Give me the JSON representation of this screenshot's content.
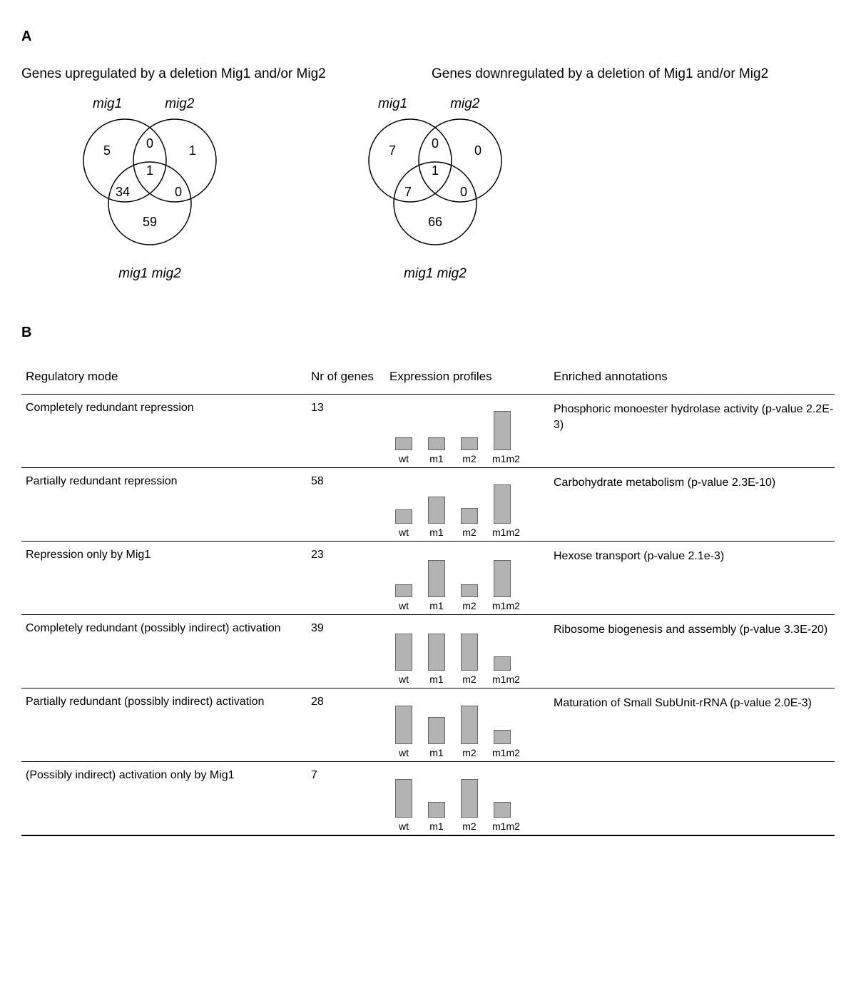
{
  "panelA": {
    "letter": "A",
    "left_title": "Genes upregulated by a deletion Mig1 and/or Mig2",
    "right_title": "Genes downregulated by a deletion of Mig1 and/or Mig2",
    "venn_labels": {
      "mig1": "mig1",
      "mig2": "mig2",
      "mig1mig2": "mig1 mig2"
    },
    "venn_left": {
      "a_only": "5",
      "b_only": "1",
      "ab": "0",
      "abc": "1",
      "ac": "34",
      "bc": "0",
      "c_only": "59"
    },
    "venn_right": {
      "a_only": "7",
      "b_only": "0",
      "ab": "0",
      "abc": "1",
      "ac": "7",
      "bc": "0",
      "c_only": "66"
    },
    "circle_stroke": "#000000",
    "circle_fill": "none"
  },
  "panelB": {
    "letter": "B",
    "headers": {
      "mode": "Regulatory mode",
      "genes": "Nr of genes",
      "profile": "Expression profiles",
      "annot": "Enriched annotations"
    },
    "bar_fill": "#b3b3b3",
    "bar_stroke": "#666666",
    "bar_labels": [
      "wt",
      "m1",
      "m2",
      "m1m2"
    ],
    "rows": [
      {
        "mode": "Completely redundant repression",
        "genes": "13",
        "heights": [
          18,
          18,
          18,
          55
        ],
        "annot": "Phosphoric monoester hydrolase activity (p-value 2.2E-3)"
      },
      {
        "mode": "Partially redundant repression",
        "genes": "58",
        "heights": [
          20,
          38,
          22,
          55
        ],
        "annot": "Carbohydrate metabolism (p-value 2.3E-10)"
      },
      {
        "mode": "Repression only by Mig1",
        "genes": "23",
        "heights": [
          18,
          52,
          18,
          52
        ],
        "annot": "Hexose transport (p-value 2.1e-3)"
      },
      {
        "mode": "Completely redundant (possibly indirect) activation",
        "genes": "39",
        "heights": [
          52,
          52,
          52,
          20
        ],
        "annot": "Ribosome biogenesis and assembly (p-value 3.3E-20)"
      },
      {
        "mode": "Partially redundant (possibly indirect) activation",
        "genes": "28",
        "heights": [
          54,
          38,
          54,
          20
        ],
        "annot": "Maturation of Small SubUnit-rRNA (p-value 2.0E-3)"
      },
      {
        "mode": "(Possibly indirect) activation only by Mig1",
        "genes": "7",
        "heights": [
          54,
          22,
          54,
          22
        ],
        "annot": ""
      }
    ]
  }
}
